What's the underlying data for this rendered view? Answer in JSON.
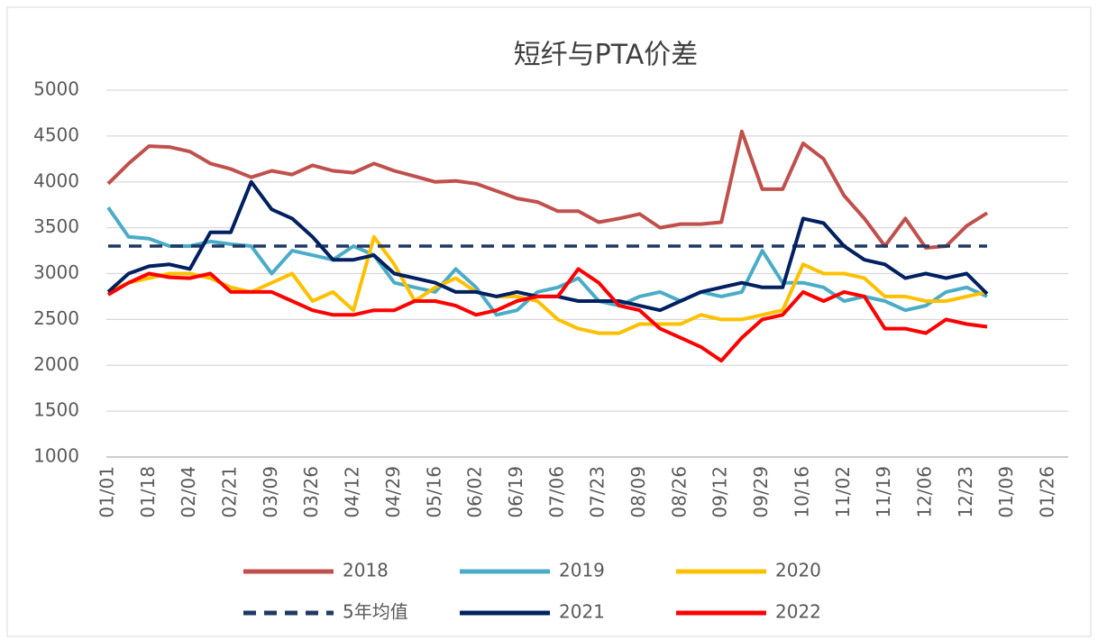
{
  "chart_data": {
    "type": "line",
    "title": "短纤与PTA价差",
    "categories": [
      "01/01",
      null,
      "01/18",
      null,
      "02/04",
      null,
      "02/21",
      null,
      "03/09",
      null,
      "03/26",
      null,
      "04/12",
      null,
      "04/29",
      null,
      "05/16",
      null,
      "06/02",
      null,
      "06/19",
      null,
      "07/06",
      null,
      "07/23",
      null,
      "08/09",
      null,
      "08/26",
      null,
      "09/12",
      null,
      "09/29",
      null,
      "10/16",
      null,
      "11/02",
      null,
      "11/19",
      null,
      "12/06",
      null,
      "12/23",
      null,
      "01/09",
      null,
      "01/26"
    ],
    "ylim": [
      1000,
      5000
    ],
    "yticks": [
      1000,
      1500,
      2000,
      2500,
      3000,
      3500,
      4000,
      4500,
      5000
    ],
    "grid": true,
    "series": [
      {
        "name": "2018",
        "color": "#c0504d",
        "dashed": false,
        "values": [
          3980,
          4200,
          4390,
          4380,
          4330,
          4200,
          4140,
          4050,
          4120,
          4080,
          4180,
          4120,
          4100,
          4200,
          4120,
          4060,
          4000,
          4010,
          3980,
          3900,
          3820,
          3780,
          3680,
          3680,
          3560,
          3600,
          3650,
          3500,
          3540,
          3540,
          3560,
          4550,
          3920,
          3920,
          4420,
          4250,
          3850,
          3600,
          3300,
          3600,
          3280,
          3300,
          3520,
          3660,
          null,
          null,
          null
        ]
      },
      {
        "name": "2019",
        "color": "#4bacc6",
        "dashed": false,
        "values": [
          3720,
          3400,
          3380,
          3300,
          3300,
          3350,
          3320,
          3300,
          3000,
          3250,
          3200,
          3150,
          3300,
          3200,
          2900,
          2850,
          2800,
          3050,
          2850,
          2550,
          2600,
          2800,
          2850,
          2950,
          2700,
          2650,
          2750,
          2800,
          2700,
          2800,
          2750,
          2800,
          3250,
          2900,
          2900,
          2850,
          2700,
          2750,
          2700,
          2600,
          2650,
          2800,
          2850,
          2750,
          null,
          null,
          null
        ]
      },
      {
        "name": "2020",
        "color": "#ffc000",
        "dashed": false,
        "values": [
          2800,
          2900,
          2950,
          3000,
          3000,
          2950,
          2850,
          2800,
          2900,
          3000,
          2700,
          2800,
          2600,
          3400,
          3100,
          2700,
          2850,
          2950,
          2800,
          2750,
          2750,
          2700,
          2500,
          2400,
          2350,
          2350,
          2450,
          2450,
          2450,
          2550,
          2500,
          2500,
          2550,
          2600,
          3100,
          3000,
          3000,
          2950,
          2750,
          2750,
          2700,
          2700,
          2750,
          2800,
          null,
          null,
          null
        ]
      },
      {
        "name": "5年均值",
        "color": "#1f3864",
        "dashed": true,
        "values": [
          3300,
          3300,
          3300,
          3300,
          3300,
          3300,
          3300,
          3300,
          3300,
          3300,
          3300,
          3300,
          3300,
          3300,
          3300,
          3300,
          3300,
          3300,
          3300,
          3300,
          3300,
          3300,
          3300,
          3300,
          3300,
          3300,
          3300,
          3300,
          3300,
          3300,
          3300,
          3300,
          3300,
          3300,
          3300,
          3300,
          3300,
          3300,
          3300,
          3300,
          3300,
          3300,
          3300,
          3300,
          null,
          null,
          null
        ]
      },
      {
        "name": "2021",
        "color": "#002060",
        "dashed": false,
        "values": [
          2800,
          3000,
          3080,
          3100,
          3050,
          3450,
          3450,
          4000,
          3700,
          3600,
          3400,
          3150,
          3150,
          3200,
          3000,
          2950,
          2900,
          2800,
          2800,
          2750,
          2800,
          2750,
          2750,
          2700,
          2700,
          2700,
          2650,
          2600,
          2700,
          2800,
          2850,
          2900,
          2850,
          2850,
          3600,
          3550,
          3300,
          3150,
          3100,
          2950,
          3000,
          2950,
          3000,
          2780,
          null,
          null,
          null
        ]
      },
      {
        "name": "2022",
        "color": "#ff0000",
        "dashed": false,
        "values": [
          2770,
          2900,
          3000,
          2960,
          2950,
          3000,
          2800,
          2800,
          2800,
          2700,
          2600,
          2550,
          2550,
          2600,
          2600,
          2700,
          2700,
          2650,
          2550,
          2600,
          2700,
          2750,
          2750,
          3050,
          2900,
          2650,
          2600,
          2400,
          2300,
          2200,
          2050,
          2300,
          2500,
          2550,
          2800,
          2700,
          2800,
          2750,
          2400,
          2400,
          2350,
          2500,
          2450,
          2420,
          null,
          null,
          null
        ]
      }
    ]
  }
}
